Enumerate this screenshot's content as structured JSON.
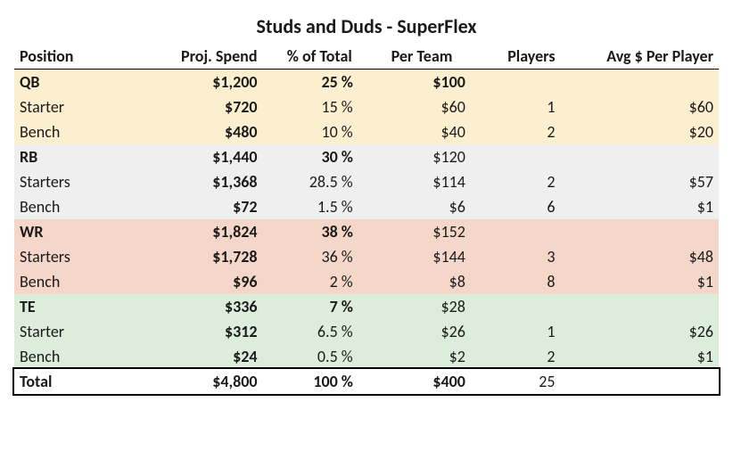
{
  "title": "Studs and Duds - SuperFlex",
  "columns": {
    "position": "Position",
    "proj_spend": "Proj. Spend",
    "pct_total": "% of Total",
    "per_team": "Per Team",
    "players": "Players",
    "avg_per_player": "Avg $ Per Player"
  },
  "colors": {
    "qb_bg": "#fcefcf",
    "rb_bg": "#efefef",
    "wr_bg": "#f5d7c9",
    "te_bg": "#dceddb",
    "text": "#1a1a1a",
    "border": "#000000"
  },
  "groups": [
    {
      "key": "qb",
      "header": {
        "position": "QB",
        "spend": "$1,200",
        "pct": "25",
        "per_team": "$100",
        "per_team_bold": true
      },
      "rows": [
        {
          "position": "Starter",
          "spend": "$720",
          "pct": "15",
          "per_team": "$60",
          "players": "1",
          "avg": "$60"
        },
        {
          "position": "Bench",
          "spend": "$480",
          "pct": "10",
          "per_team": "$40",
          "players": "2",
          "avg": "$20"
        }
      ]
    },
    {
      "key": "rb",
      "header": {
        "position": "RB",
        "spend": "$1,440",
        "pct": "30",
        "per_team": "$120",
        "per_team_bold": false
      },
      "rows": [
        {
          "position": "Starters",
          "spend": "$1,368",
          "pct": "28.5",
          "per_team": "$114",
          "players": "2",
          "avg": "$57"
        },
        {
          "position": "Bench",
          "spend": "$72",
          "pct": "1.5",
          "per_team": "$6",
          "players": "6",
          "avg": "$1"
        }
      ]
    },
    {
      "key": "wr",
      "header": {
        "position": "WR",
        "spend": "$1,824",
        "pct": "38",
        "per_team": "$152",
        "per_team_bold": false
      },
      "rows": [
        {
          "position": "Starters",
          "spend": "$1,728",
          "pct": "36",
          "per_team": "$144",
          "players": "3",
          "avg": "$48"
        },
        {
          "position": "Bench",
          "spend": "$96",
          "pct": "2",
          "per_team": "$8",
          "players": "8",
          "avg": "$1"
        }
      ]
    },
    {
      "key": "te",
      "header": {
        "position": "TE",
        "spend": "$336",
        "pct": "7",
        "per_team": "$28",
        "per_team_bold": false
      },
      "rows": [
        {
          "position": "Starter",
          "spend": "$312",
          "pct": "6.5",
          "per_team": "$26",
          "players": "1",
          "avg": "$26"
        },
        {
          "position": "Bench",
          "spend": "$24",
          "pct": "0.5",
          "per_team": "$2",
          "players": "2",
          "avg": "$1"
        }
      ]
    }
  ],
  "total": {
    "position": "Total",
    "spend": "$4,800",
    "pct": "100",
    "per_team": "$400",
    "players": "25"
  },
  "pct_symbol": "%"
}
